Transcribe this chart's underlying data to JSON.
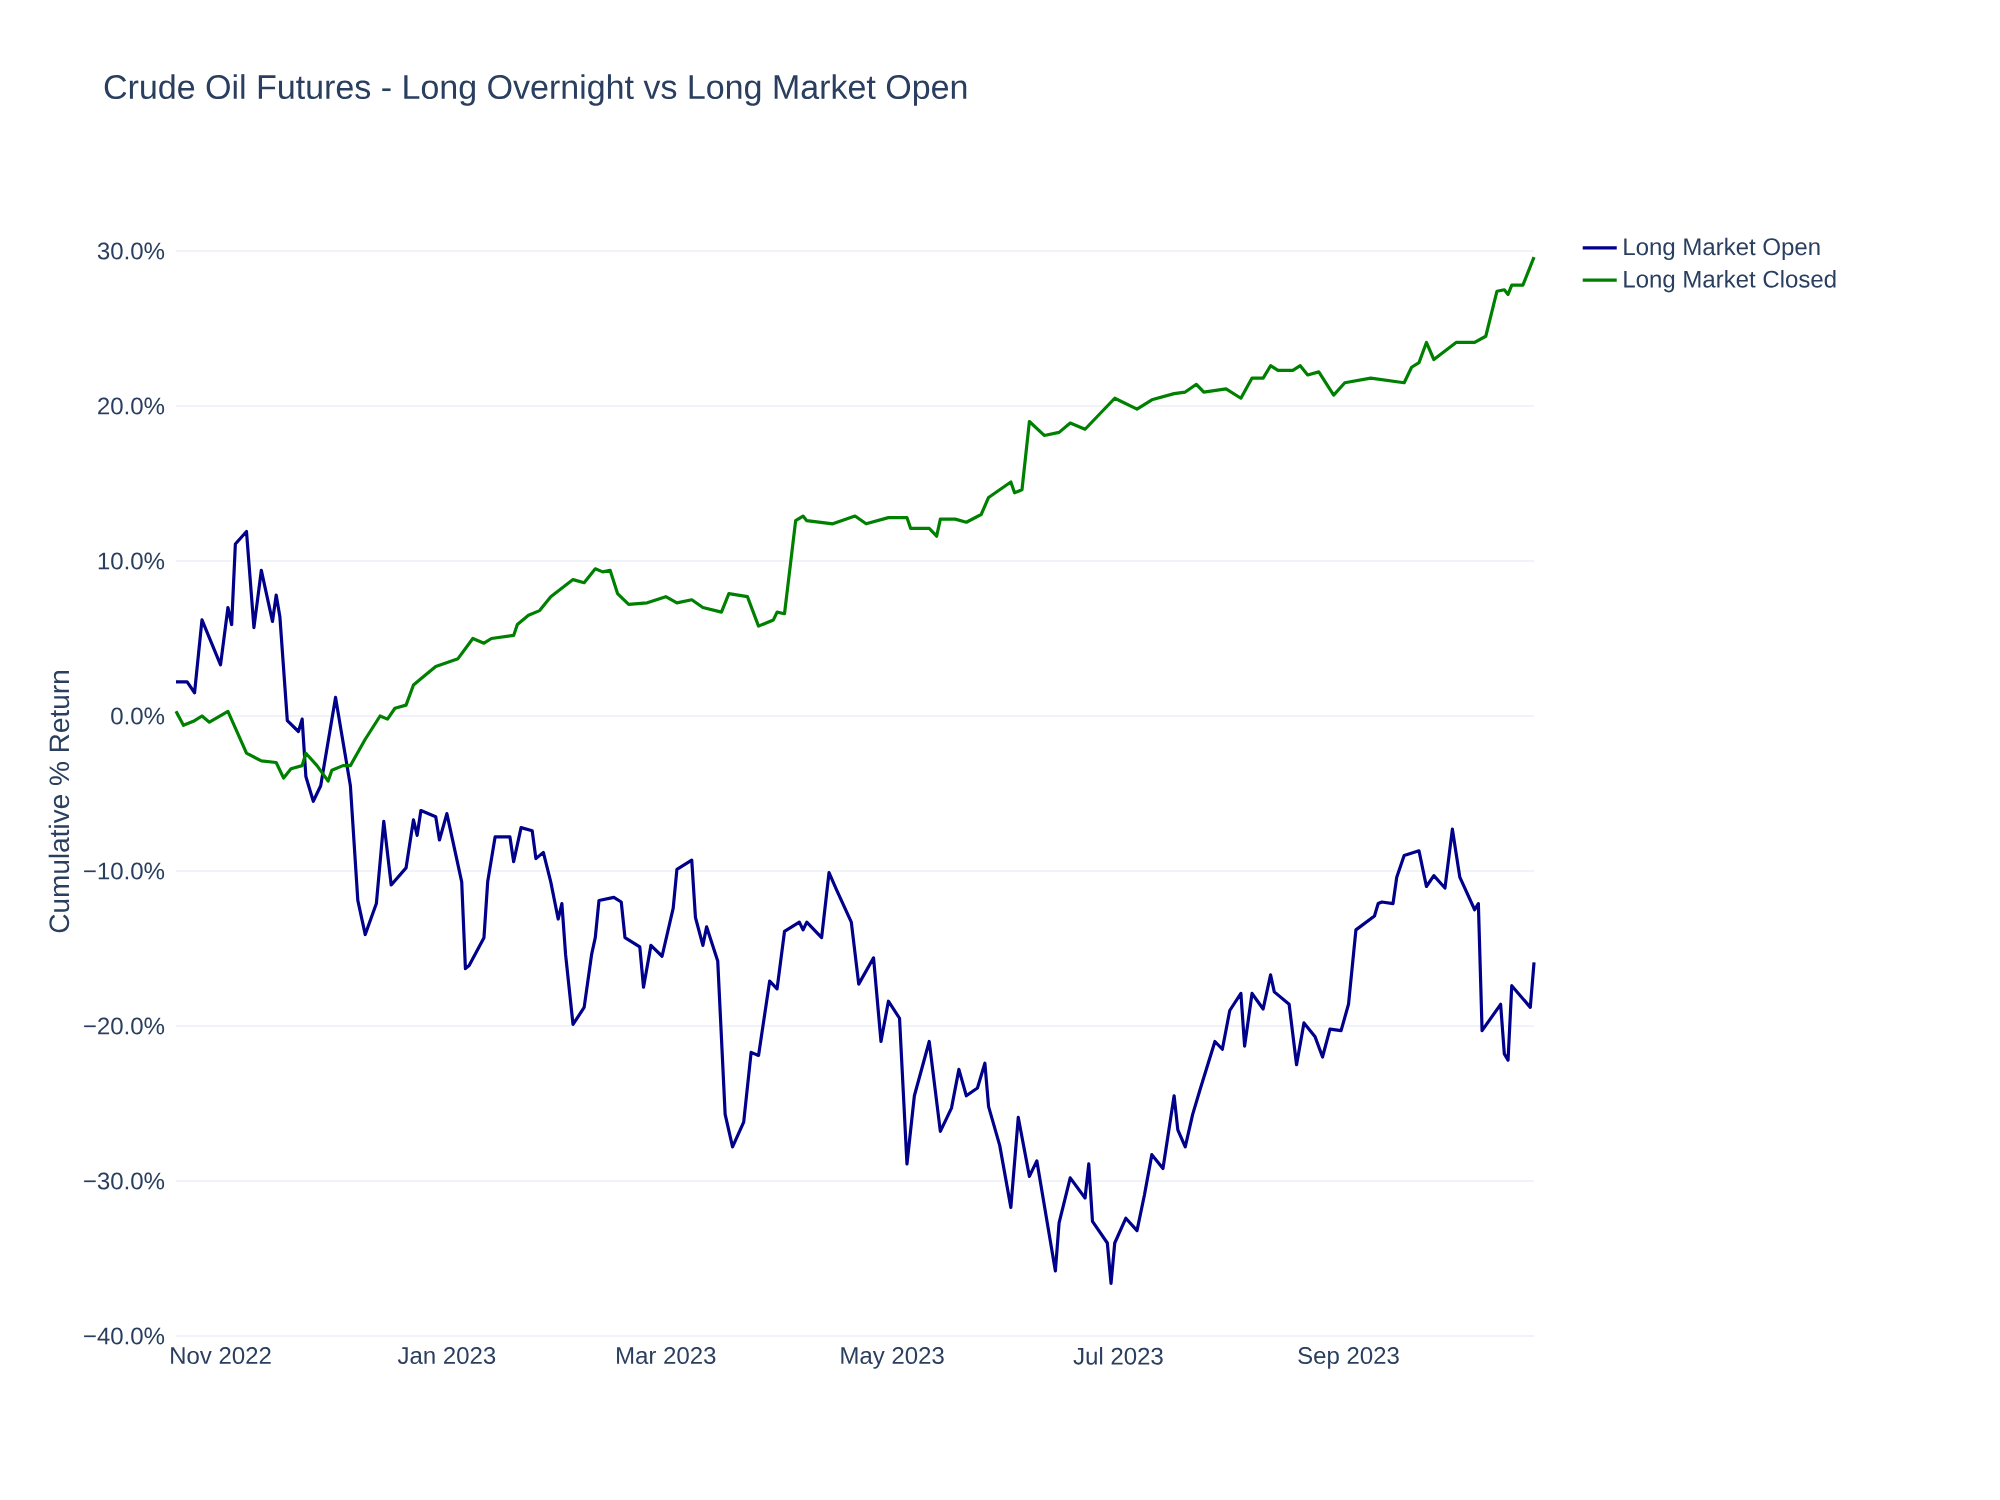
{
  "chart_data": {
    "type": "line",
    "title": "Crude Oil Futures - Long Overnight vs Long Market Open",
    "ylabel": "Cumulative % Return",
    "xlim": [
      "2022-10-20",
      "2023-10-21"
    ],
    "ylim": [
      -40,
      30
    ],
    "xticks": [
      {
        "value": "2022-11-01",
        "label": "Nov 2022"
      },
      {
        "value": "2023-01-01",
        "label": "Jan 2023"
      },
      {
        "value": "2023-03-01",
        "label": "Mar 2023"
      },
      {
        "value": "2023-05-01",
        "label": "May 2023"
      },
      {
        "value": "2023-07-01",
        "label": "Jul 2023"
      },
      {
        "value": "2023-09-01",
        "label": "Sep 2023"
      }
    ],
    "yticks": [
      {
        "value": -40,
        "label": "−40.0%"
      },
      {
        "value": -30,
        "label": "−30.0%"
      },
      {
        "value": -20,
        "label": "−20.0%"
      },
      {
        "value": -10,
        "label": "−10.0%"
      },
      {
        "value": 0,
        "label": "0.0%"
      },
      {
        "value": 10,
        "label": "10.0%"
      },
      {
        "value": 20,
        "label": "20.0%"
      },
      {
        "value": 30,
        "label": "30.0%"
      }
    ],
    "grid": "y",
    "legend": "top right",
    "series": [
      {
        "name": "Long Market Open",
        "color": "#00008b",
        "x": [
          "2022-10-20",
          "2022-10-23",
          "2022-10-25",
          "2022-10-27",
          "2022-11-01",
          "2022-11-03",
          "2022-11-04",
          "2022-11-05",
          "2022-11-08",
          "2022-11-10",
          "2022-11-12",
          "2022-11-15",
          "2022-11-16",
          "2022-11-17",
          "2022-11-19",
          "2022-11-22",
          "2022-11-23",
          "2022-11-24",
          "2022-11-26",
          "2022-11-28",
          "2022-12-02",
          "2022-12-06",
          "2022-12-08",
          "2022-12-10",
          "2022-12-13",
          "2022-12-15",
          "2022-12-17",
          "2022-12-21",
          "2022-12-23",
          "2022-12-24",
          "2022-12-25",
          "2022-12-29",
          "2022-12-30",
          "2023-01-01",
          "2023-01-05",
          "2023-01-06",
          "2023-01-07",
          "2023-01-11",
          "2023-01-12",
          "2023-01-14",
          "2023-01-18",
          "2023-01-19",
          "2023-01-21",
          "2023-01-24",
          "2023-01-25",
          "2023-01-27",
          "2023-01-29",
          "2023-01-31",
          "2023-02-01",
          "2023-02-02",
          "2023-02-04",
          "2023-02-07",
          "2023-02-09",
          "2023-02-10",
          "2023-02-11",
          "2023-02-15",
          "2023-02-17",
          "2023-02-18",
          "2023-02-22",
          "2023-02-23",
          "2023-02-25",
          "2023-02-28",
          "2023-03-03",
          "2023-03-04",
          "2023-03-08",
          "2023-03-09",
          "2023-03-11",
          "2023-03-12",
          "2023-03-15",
          "2023-03-17",
          "2023-03-19",
          "2023-03-22",
          "2023-03-24",
          "2023-03-26",
          "2023-03-29",
          "2023-03-31",
          "2023-04-02",
          "2023-04-06",
          "2023-04-07",
          "2023-04-08",
          "2023-04-12",
          "2023-04-14",
          "2023-04-16",
          "2023-04-20",
          "2023-04-22",
          "2023-04-26",
          "2023-04-28",
          "2023-04-30",
          "2023-05-03",
          "2023-05-05",
          "2023-05-07",
          "2023-05-11",
          "2023-05-14",
          "2023-05-17",
          "2023-05-19",
          "2023-05-21",
          "2023-05-24",
          "2023-05-26",
          "2023-05-27",
          "2023-05-30",
          "2023-06-02",
          "2023-06-04",
          "2023-06-07",
          "2023-06-09",
          "2023-06-14",
          "2023-06-15",
          "2023-06-18",
          "2023-06-22",
          "2023-06-23",
          "2023-06-24",
          "2023-06-28",
          "2023-06-29",
          "2023-06-30",
          "2023-07-03",
          "2023-07-06",
          "2023-07-08",
          "2023-07-10",
          "2023-07-13",
          "2023-07-16",
          "2023-07-17",
          "2023-07-19",
          "2023-07-21",
          "2023-07-23",
          "2023-07-27",
          "2023-07-29",
          "2023-07-31",
          "2023-08-03",
          "2023-08-04",
          "2023-08-06",
          "2023-08-09",
          "2023-08-11",
          "2023-08-12",
          "2023-08-16",
          "2023-08-18",
          "2023-08-20",
          "2023-08-23",
          "2023-08-25",
          "2023-08-27",
          "2023-08-30",
          "2023-09-01",
          "2023-09-03",
          "2023-09-08",
          "2023-09-09",
          "2023-09-10",
          "2023-09-13",
          "2023-09-14",
          "2023-09-16",
          "2023-09-20",
          "2023-09-22",
          "2023-09-24",
          "2023-09-27",
          "2023-09-29",
          "2023-10-01",
          "2023-10-05",
          "2023-10-06",
          "2023-10-07",
          "2023-10-12",
          "2023-10-13",
          "2023-10-14",
          "2023-10-15",
          "2023-10-20",
          "2023-10-21"
        ],
        "values": [
          2.2,
          2.2,
          1.5,
          6.2,
          3.3,
          7.0,
          5.9,
          11.1,
          11.9,
          5.7,
          9.4,
          6.1,
          7.8,
          6.4,
          -0.3,
          -1.0,
          -0.2,
          -3.9,
          -5.5,
          -4.5,
          1.2,
          -4.5,
          -11.9,
          -14.1,
          -12.1,
          -6.8,
          -10.9,
          -9.8,
          -6.7,
          -7.7,
          -6.1,
          -6.5,
          -8.0,
          -6.3,
          -10.7,
          -16.3,
          -16.1,
          -14.3,
          -10.7,
          -7.8,
          -7.8,
          -9.4,
          -7.2,
          -7.4,
          -9.2,
          -8.8,
          -10.7,
          -13.1,
          -12.1,
          -15.4,
          -19.9,
          -18.8,
          -15.4,
          -14.3,
          -11.9,
          -11.7,
          -12.0,
          -14.3,
          -14.9,
          -17.5,
          -14.8,
          -15.5,
          -12.4,
          -9.9,
          -9.3,
          -13.0,
          -14.8,
          -13.6,
          -15.8,
          -25.7,
          -27.8,
          -26.2,
          -21.7,
          -21.9,
          -17.1,
          -17.6,
          -13.9,
          -13.3,
          -13.8,
          -13.3,
          -14.3,
          -10.1,
          -11.2,
          -13.3,
          -17.3,
          -15.6,
          -21.0,
          -18.4,
          -19.5,
          -28.9,
          -24.5,
          -21.0,
          -26.8,
          -25.3,
          -22.8,
          -24.5,
          -24.0,
          -22.4,
          -25.2,
          -27.7,
          -31.7,
          -25.9,
          -29.7,
          -28.7,
          -35.8,
          -32.7,
          -29.8,
          -31.1,
          -28.9,
          -32.6,
          -34.0,
          -36.6,
          -34.0,
          -32.4,
          -33.2,
          -30.9,
          -28.3,
          -29.2,
          -24.5,
          -26.7,
          -27.8,
          -25.7,
          -24.1,
          -21.0,
          -21.5,
          -19.0,
          -17.9,
          -21.3,
          -17.9,
          -18.9,
          -16.7,
          -17.8,
          -18.6,
          -22.5,
          -19.8,
          -20.7,
          -22.0,
          -20.2,
          -20.3,
          -18.6,
          -13.8,
          -12.9,
          -12.1,
          -12.0,
          -12.1,
          -10.4,
          -9.0,
          -8.7,
          -11.0,
          -10.3,
          -11.1,
          -7.3,
          -10.4,
          -12.5,
          -12.1,
          -20.3,
          -18.6,
          -21.8,
          -22.2,
          -17.4,
          -18.8,
          -15.9
        ]
      },
      {
        "name": "Long Market Closed",
        "color": "#008000",
        "x": [
          "2022-10-20",
          "2022-10-22",
          "2022-10-25",
          "2022-10-27",
          "2022-10-29",
          "2022-11-03",
          "2022-11-08",
          "2022-11-12",
          "2022-11-16",
          "2022-11-18",
          "2022-11-20",
          "2022-11-23",
          "2022-11-24",
          "2022-11-27",
          "2022-11-30",
          "2022-12-01",
          "2022-12-04",
          "2022-12-06",
          "2022-12-10",
          "2022-12-14",
          "2022-12-16",
          "2022-12-18",
          "2022-12-21",
          "2022-12-23",
          "2022-12-25",
          "2022-12-29",
          "2023-01-04",
          "2023-01-08",
          "2023-01-11",
          "2023-01-13",
          "2023-01-19",
          "2023-01-20",
          "2023-01-23",
          "2023-01-26",
          "2023-01-29",
          "2023-02-04",
          "2023-02-07",
          "2023-02-10",
          "2023-02-12",
          "2023-02-14",
          "2023-02-16",
          "2023-02-19",
          "2023-02-24",
          "2023-03-01",
          "2023-03-04",
          "2023-03-08",
          "2023-03-11",
          "2023-03-16",
          "2023-03-18",
          "2023-03-23",
          "2023-03-26",
          "2023-03-30",
          "2023-03-31",
          "2023-04-02",
          "2023-04-05",
          "2023-04-07",
          "2023-04-08",
          "2023-04-15",
          "2023-04-21",
          "2023-04-24",
          "2023-04-30",
          "2023-05-05",
          "2023-05-06",
          "2023-05-11",
          "2023-05-13",
          "2023-05-14",
          "2023-05-18",
          "2023-05-21",
          "2023-05-25",
          "2023-05-27",
          "2023-06-02",
          "2023-06-03",
          "2023-06-05",
          "2023-06-07",
          "2023-06-11",
          "2023-06-15",
          "2023-06-18",
          "2023-06-22",
          "2023-06-24",
          "2023-06-30",
          "2023-07-06",
          "2023-07-10",
          "2023-07-16",
          "2023-07-19",
          "2023-07-22",
          "2023-07-24",
          "2023-07-30",
          "2023-08-03",
          "2023-08-06",
          "2023-08-09",
          "2023-08-11",
          "2023-08-13",
          "2023-08-17",
          "2023-08-19",
          "2023-08-21",
          "2023-08-24",
          "2023-08-28",
          "2023-08-31",
          "2023-09-07",
          "2023-09-16",
          "2023-09-18",
          "2023-09-20",
          "2023-09-22",
          "2023-09-24",
          "2023-09-30",
          "2023-10-05",
          "2023-10-08",
          "2023-10-11",
          "2023-10-13",
          "2023-10-14",
          "2023-10-15",
          "2023-10-18",
          "2023-10-21"
        ],
        "values": [
          0.3,
          -0.6,
          -0.3,
          0.0,
          -0.4,
          0.3,
          -2.4,
          -2.9,
          -3.0,
          -4.0,
          -3.4,
          -3.2,
          -2.4,
          -3.2,
          -4.2,
          -3.5,
          -3.2,
          -3.2,
          -1.5,
          0.0,
          -0.2,
          0.5,
          0.7,
          2.0,
          2.4,
          3.2,
          3.7,
          5.0,
          4.7,
          5.0,
          5.2,
          5.9,
          6.5,
          6.8,
          7.7,
          8.8,
          8.6,
          9.5,
          9.3,
          9.4,
          7.9,
          7.2,
          7.3,
          7.7,
          7.3,
          7.5,
          7.0,
          6.7,
          7.9,
          7.7,
          5.8,
          6.2,
          6.7,
          6.6,
          12.6,
          12.9,
          12.6,
          12.4,
          12.9,
          12.4,
          12.8,
          12.8,
          12.1,
          12.1,
          11.6,
          12.7,
          12.7,
          12.5,
          13.0,
          14.1,
          15.1,
          14.4,
          14.6,
          19.0,
          18.1,
          18.3,
          18.9,
          18.5,
          19.0,
          20.5,
          19.8,
          20.4,
          20.8,
          20.9,
          21.4,
          20.9,
          21.1,
          20.5,
          21.8,
          21.8,
          22.6,
          22.3,
          22.3,
          22.6,
          22.0,
          22.2,
          20.7,
          21.5,
          21.8,
          21.5,
          22.5,
          22.8,
          24.1,
          23.0,
          24.1,
          24.1,
          24.5,
          27.4,
          27.5,
          27.2,
          27.8,
          27.8,
          29.6
        ]
      }
    ]
  }
}
